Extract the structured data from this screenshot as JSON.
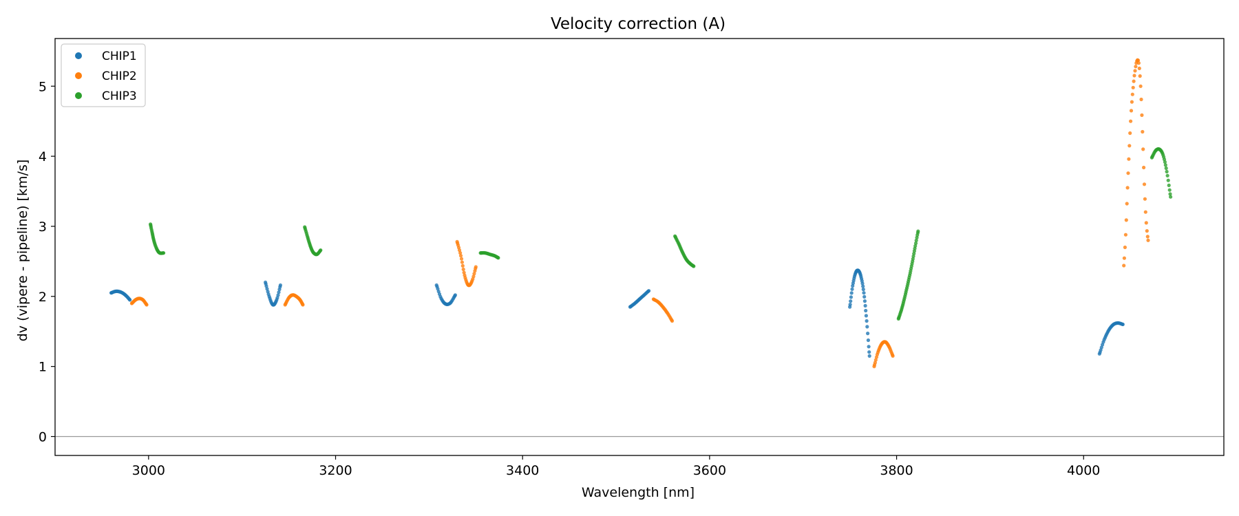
{
  "chart_data": {
    "type": "scatter",
    "title": "Velocity correction (A)",
    "xlabel": "Wavelength [nm]",
    "ylabel": "dv (vipere - pipeline) [km/s]",
    "xlim": [
      2900,
      4150
    ],
    "ylim": [
      -0.27,
      5.68
    ],
    "xticks": [
      3000,
      3200,
      3400,
      3600,
      3800,
      4000
    ],
    "yticks": [
      0,
      1,
      2,
      3,
      4,
      5
    ],
    "reference_line_y": 0,
    "legend_position": "top-left",
    "colors": {
      "CHIP1": "#1f77b4",
      "CHIP2": "#ff7f0e",
      "CHIP3": "#2ca02c",
      "reference": "#999999"
    },
    "series": [
      {
        "name": "CHIP1",
        "segments": [
          {
            "x": [
              2960,
              2964,
              2968,
              2972,
              2976,
              2980
            ],
            "y": [
              2.05,
              2.07,
              2.07,
              2.05,
              2.01,
              1.95
            ]
          },
          {
            "x": [
              3125,
              3129,
              3133,
              3137,
              3141
            ],
            "y": [
              2.2,
              2.0,
              1.88,
              1.95,
              2.16
            ]
          },
          {
            "x": [
              3308,
              3313,
              3318,
              3323,
              3328
            ],
            "y": [
              2.16,
              1.97,
              1.89,
              1.91,
              2.02
            ]
          },
          {
            "x": [
              3515,
              3520,
              3525,
              3530,
              3535
            ],
            "y": [
              1.85,
              1.9,
              1.96,
              2.02,
              2.08
            ]
          },
          {
            "x": [
              3750,
              3753,
              3756,
              3759,
              3762,
              3765,
              3768,
              3771
            ],
            "y": [
              1.85,
              2.15,
              2.33,
              2.37,
              2.28,
              2.05,
              1.65,
              1.15
            ]
          },
          {
            "x": [
              4017,
              4022,
              4027,
              4032,
              4037,
              4042
            ],
            "y": [
              1.18,
              1.38,
              1.52,
              1.6,
              1.62,
              1.6
            ]
          }
        ]
      },
      {
        "name": "CHIP2",
        "segments": [
          {
            "x": [
              2982,
              2986,
              2990,
              2994,
              2998
            ],
            "y": [
              1.9,
              1.95,
              1.97,
              1.95,
              1.88
            ]
          },
          {
            "x": [
              3146,
              3150,
              3154,
              3158,
              3162,
              3165
            ],
            "y": [
              1.88,
              1.98,
              2.02,
              2.0,
              1.95,
              1.88
            ]
          },
          {
            "x": [
              3330,
              3334,
              3338,
              3342,
              3346,
              3350
            ],
            "y": [
              2.78,
              2.58,
              2.3,
              2.16,
              2.22,
              2.42
            ]
          },
          {
            "x": [
              3540,
              3545,
              3550,
              3555,
              3560
            ],
            "y": [
              1.96,
              1.92,
              1.85,
              1.76,
              1.65
            ]
          },
          {
            "x": [
              3776,
              3780,
              3784,
              3788,
              3792,
              3796
            ],
            "y": [
              1.0,
              1.2,
              1.32,
              1.35,
              1.28,
              1.15
            ]
          },
          {
            "x": [
              4043,
              4045,
              4047,
              4049,
              4051,
              4053,
              4055,
              4057,
              4059,
              4061,
              4063,
              4065,
              4067,
              4069
            ],
            "y": [
              2.44,
              2.88,
              3.55,
              4.15,
              4.65,
              4.98,
              5.22,
              5.36,
              5.33,
              5.0,
              4.35,
              3.6,
              3.05,
              2.8
            ]
          }
        ]
      },
      {
        "name": "CHIP3",
        "segments": [
          {
            "x": [
              3002,
              3004,
              3006,
              3009,
              3012,
              3016
            ],
            "y": [
              3.03,
              2.9,
              2.78,
              2.67,
              2.62,
              2.62
            ]
          },
          {
            "x": [
              3167,
              3170,
              3173,
              3176,
              3180,
              3184
            ],
            "y": [
              2.99,
              2.85,
              2.72,
              2.63,
              2.6,
              2.66
            ]
          },
          {
            "x": [
              3355,
              3360,
              3365,
              3370,
              3374
            ],
            "y": [
              2.62,
              2.62,
              2.6,
              2.58,
              2.55
            ]
          },
          {
            "x": [
              3563,
              3567,
              3571,
              3575,
              3579,
              3583
            ],
            "y": [
              2.86,
              2.75,
              2.63,
              2.53,
              2.47,
              2.43
            ]
          },
          {
            "x": [
              3802,
              3805,
              3808,
              3811,
              3814,
              3817,
              3820,
              3823
            ],
            "y": [
              1.68,
              1.8,
              1.95,
              2.12,
              2.3,
              2.5,
              2.72,
              2.93
            ]
          },
          {
            "x": [
              4073,
              4077,
              4081,
              4085,
              4089,
              4093
            ],
            "y": [
              3.98,
              4.08,
              4.1,
              4.02,
              3.78,
              3.42
            ]
          }
        ]
      }
    ]
  }
}
